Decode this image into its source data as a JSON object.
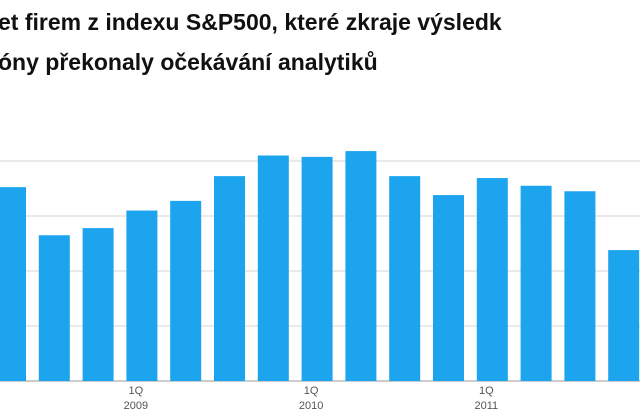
{
  "chart_data": {
    "type": "bar",
    "title_lines": [
      "et firem z indexu S&P500, které zkraje výsledk",
      "óny překonaly očekávání analytiků"
    ],
    "categories": [
      null,
      null,
      null,
      "1Q",
      null,
      null,
      null,
      "1Q",
      null,
      null,
      null,
      "1Q",
      null,
      null,
      null
    ],
    "category_years": [
      null,
      null,
      null,
      "2009",
      null,
      null,
      null,
      "2010",
      null,
      null,
      null,
      "2011",
      null,
      null,
      null
    ],
    "values": [
      70.5,
      53,
      55.6,
      62,
      65.5,
      74.5,
      82,
      81.5,
      83.6,
      74.5,
      67.6,
      73.8,
      71,
      69,
      47.6
    ],
    "color": "#1ca4ef",
    "ylim": [
      0,
      100
    ],
    "yticks": [
      0,
      20,
      40,
      60,
      80
    ],
    "grid": true
  }
}
